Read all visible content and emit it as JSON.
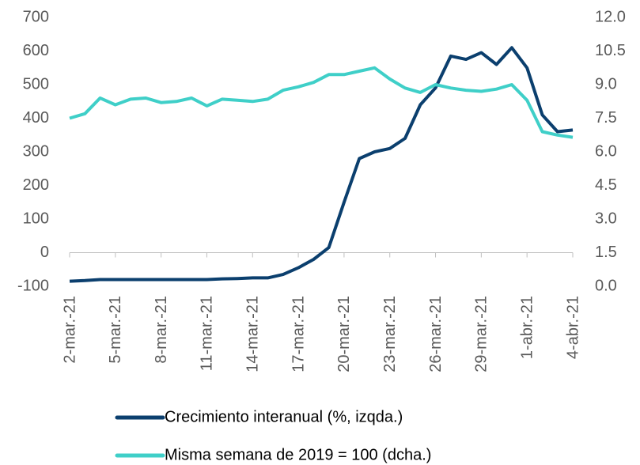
{
  "chart_data": {
    "type": "line",
    "categories": [
      "2-mar.-21",
      null,
      null,
      "5-mar.-21",
      null,
      null,
      "8-mar.-21",
      null,
      null,
      "11-mar.-21",
      null,
      null,
      "14-mar.-21",
      null,
      null,
      "17-mar.-21",
      null,
      null,
      "20-mar.-21",
      null,
      null,
      "23-mar.-21",
      null,
      null,
      "26-mar.-21",
      null,
      null,
      "29-mar.-21",
      null,
      null,
      "1-abr.-21",
      null,
      null,
      "4-abr.-21"
    ],
    "series": [
      {
        "name": "Crecimiento interanual (%, izqda.)",
        "color": "#0b3f6e",
        "axis": "y",
        "values": [
          -85,
          -83,
          -80,
          -80,
          -80,
          -80,
          -80,
          -80,
          -80,
          -80,
          -78,
          -77,
          -75,
          -75,
          -65,
          -45,
          -20,
          15,
          150,
          280,
          300,
          310,
          340,
          440,
          490,
          585,
          575,
          595,
          560,
          610,
          550,
          410,
          360,
          365
        ]
      },
      {
        "name": "Misma semana de 2019 = 100 (dcha.)",
        "color": "#3fcfc8",
        "axis": "y2",
        "values": [
          7.5,
          7.7,
          8.4,
          8.1,
          8.35,
          8.4,
          8.2,
          8.25,
          8.4,
          8.05,
          8.35,
          8.3,
          8.25,
          8.35,
          8.75,
          8.9,
          9.1,
          9.45,
          9.45,
          9.6,
          9.75,
          9.25,
          8.85,
          8.65,
          9.0,
          8.85,
          8.75,
          8.7,
          8.8,
          9.0,
          8.3,
          6.9,
          6.75,
          6.65
        ]
      }
    ],
    "ylim": [
      -100,
      700
    ],
    "yticks": [
      -100,
      0,
      100,
      200,
      300,
      400,
      500,
      600,
      700
    ],
    "y2lim": [
      0,
      12
    ],
    "y2ticks": [
      {
        "value": 0,
        "label": "0.0"
      },
      1.5,
      {
        "value": 3,
        "label": "3.0"
      },
      4.5,
      {
        "value": 6,
        "label": "6.0"
      },
      7.5,
      {
        "value": 9,
        "label": "9.0"
      },
      10.5,
      {
        "value": 12,
        "label": "12.0"
      }
    ],
    "grid": false,
    "legend": "bottom"
  }
}
